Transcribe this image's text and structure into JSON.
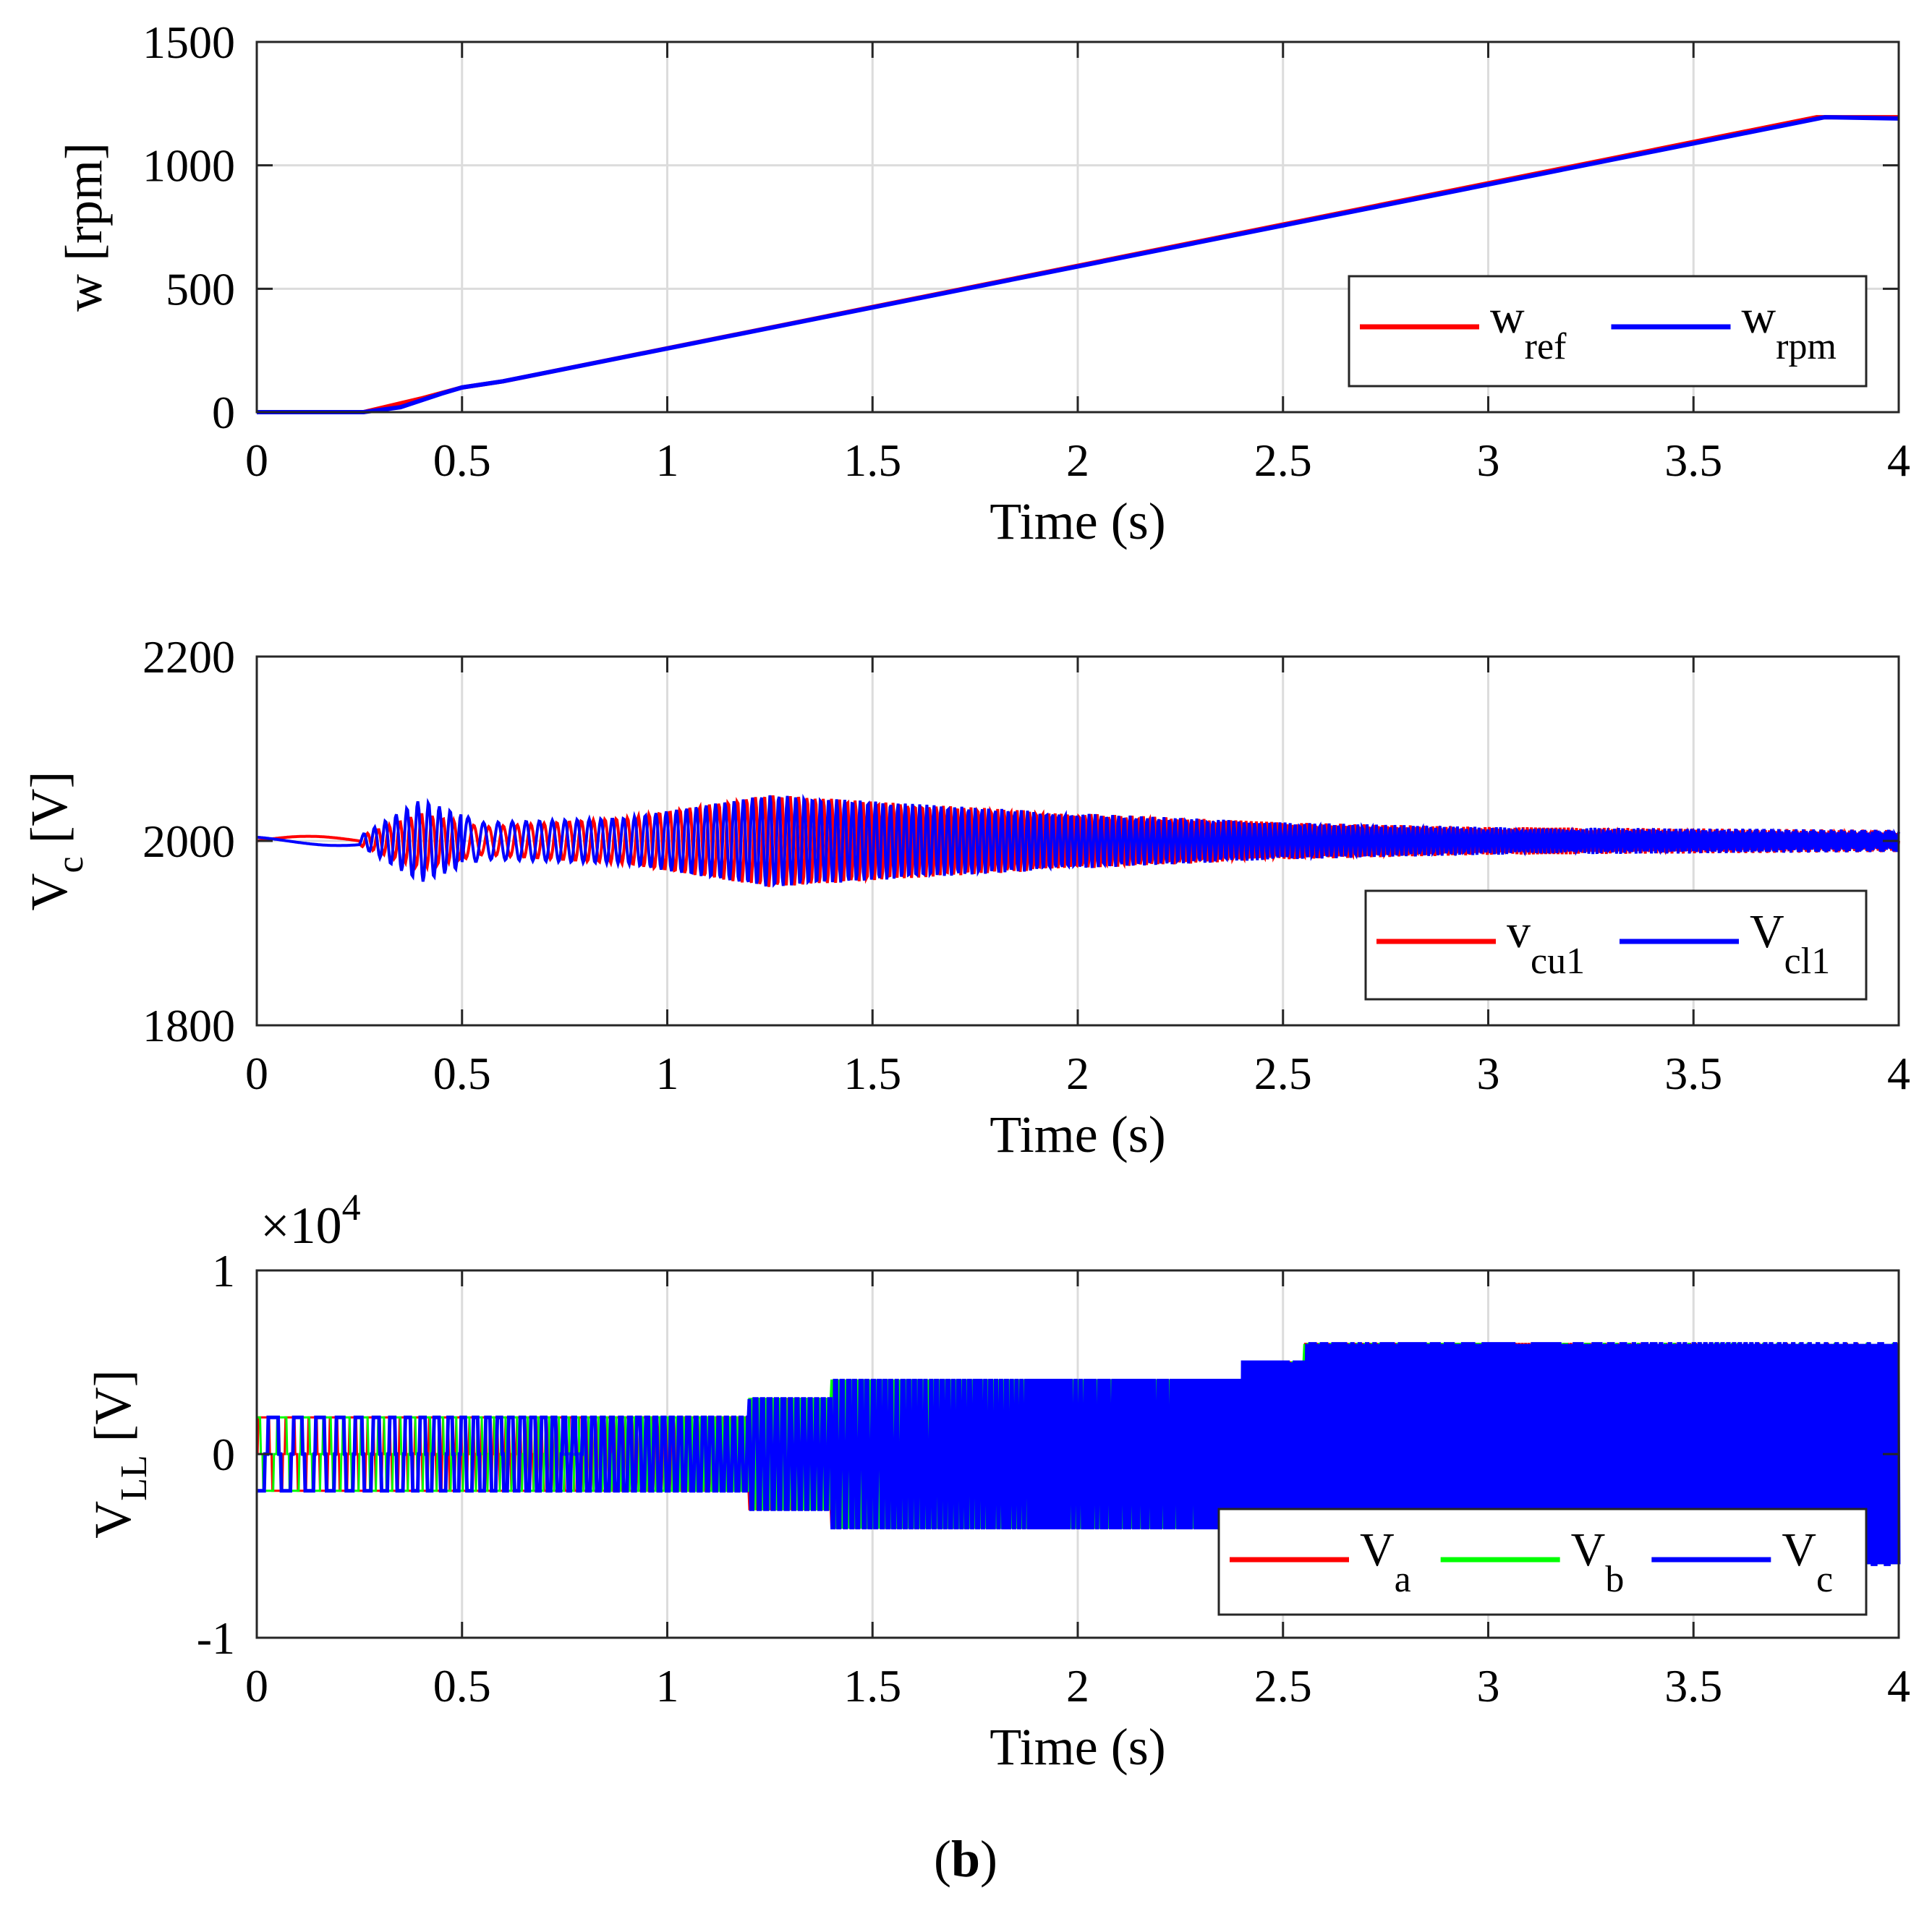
{
  "figure_caption": {
    "open": "(",
    "letter": "b",
    "close": ")"
  },
  "chart_data": [
    {
      "type": "line",
      "title": "",
      "xlabel": "Time (s)",
      "ylabel": "w [rpm]",
      "xlim": [
        0,
        4
      ],
      "ylim": [
        0,
        1500
      ],
      "xticks": [
        "0",
        "0.5",
        "1",
        "1.5",
        "2",
        "2.5",
        "3",
        "3.5",
        "4"
      ],
      "yticks": [
        "0",
        "500",
        "1000",
        "1500"
      ],
      "grid": true,
      "legend_position": "lower-right",
      "series": [
        {
          "name": "wref",
          "label_main": "w",
          "label_sub": "ref",
          "color": "#ff0000",
          "x": [
            0,
            0.26,
            0.4,
            0.5,
            0.6,
            3.8,
            4.0
          ],
          "y": [
            0,
            0,
            55,
            100,
            125,
            1195,
            1195
          ]
        },
        {
          "name": "wrpm",
          "label_main": "w",
          "label_sub": "rpm",
          "color": "#0000ff",
          "x": [
            0,
            0.26,
            0.35,
            0.45,
            0.5,
            0.6,
            3.82,
            4.0
          ],
          "y": [
            0,
            0,
            20,
            75,
            100,
            125,
            1195,
            1190
          ]
        }
      ]
    },
    {
      "type": "line",
      "title": "",
      "xlabel": "Time (s)",
      "ylabel": "V",
      "ylabel_sub": "c",
      "ylabel_unit": " [V]",
      "xlim": [
        0,
        4
      ],
      "ylim": [
        1800,
        2200
      ],
      "xticks": [
        "0",
        "0.5",
        "1",
        "1.5",
        "2",
        "2.5",
        "3",
        "3.5",
        "4"
      ],
      "yticks": [
        "1800",
        "2000",
        "2200"
      ],
      "grid": true,
      "legend_position": "lower-right",
      "series": [
        {
          "name": "vcu1",
          "label_main": "v",
          "label_sub": "cu1",
          "color": "#ff0000",
          "center": 2000,
          "envelope_t": [
            0,
            0.25,
            0.4,
            0.55,
            0.9,
            1.25,
            1.6,
            2.0,
            2.5,
            3.0,
            4.0
          ],
          "envelope_amp": [
            5,
            5,
            30,
            15,
            25,
            50,
            40,
            30,
            20,
            15,
            12
          ]
        },
        {
          "name": "vcl1",
          "label_main": "V",
          "label_sub": "cl1",
          "color": "#0000ff",
          "center": 2000,
          "envelope_t": [
            0,
            0.25,
            0.4,
            0.55,
            0.9,
            1.25,
            1.6,
            2.0,
            2.5,
            3.0,
            4.0
          ],
          "envelope_amp": [
            5,
            5,
            45,
            20,
            25,
            50,
            40,
            30,
            20,
            15,
            12
          ]
        }
      ]
    },
    {
      "type": "line",
      "title": "",
      "xlabel": "Time (s)",
      "ylabel": "V",
      "ylabel_sub": "LL",
      "ylabel_unit": " [V]",
      "xlim": [
        0,
        4
      ],
      "ylim": [
        -1,
        1
      ],
      "scale_label_base": "×10",
      "scale_label_exp": "4",
      "xticks": [
        "0",
        "0.5",
        "1",
        "1.5",
        "2",
        "2.5",
        "3",
        "3.5",
        "4"
      ],
      "yticks": [
        "-1",
        "0",
        "1"
      ],
      "grid": true,
      "legend_position": "lower-right",
      "series": [
        {
          "name": "Va",
          "label_main": "V",
          "label_sub": "a",
          "color": "#ff0000"
        },
        {
          "name": "Vb",
          "label_main": "V",
          "label_sub": "b",
          "color": "#00ff00"
        },
        {
          "name": "Vc",
          "label_main": "V",
          "label_sub": "c",
          "color": "#0000ff"
        }
      ],
      "levels": [
        {
          "t_start": 0.0,
          "t_end": 1.2,
          "peak": 0.2
        },
        {
          "t_start": 1.2,
          "t_end": 1.4,
          "peak": 0.3
        },
        {
          "t_start": 1.4,
          "t_end": 2.4,
          "peak": 0.4
        },
        {
          "t_start": 2.4,
          "t_end": 2.55,
          "peak": 0.5
        },
        {
          "t_start": 2.55,
          "t_end": 4.0,
          "peak": 0.6
        }
      ]
    }
  ]
}
